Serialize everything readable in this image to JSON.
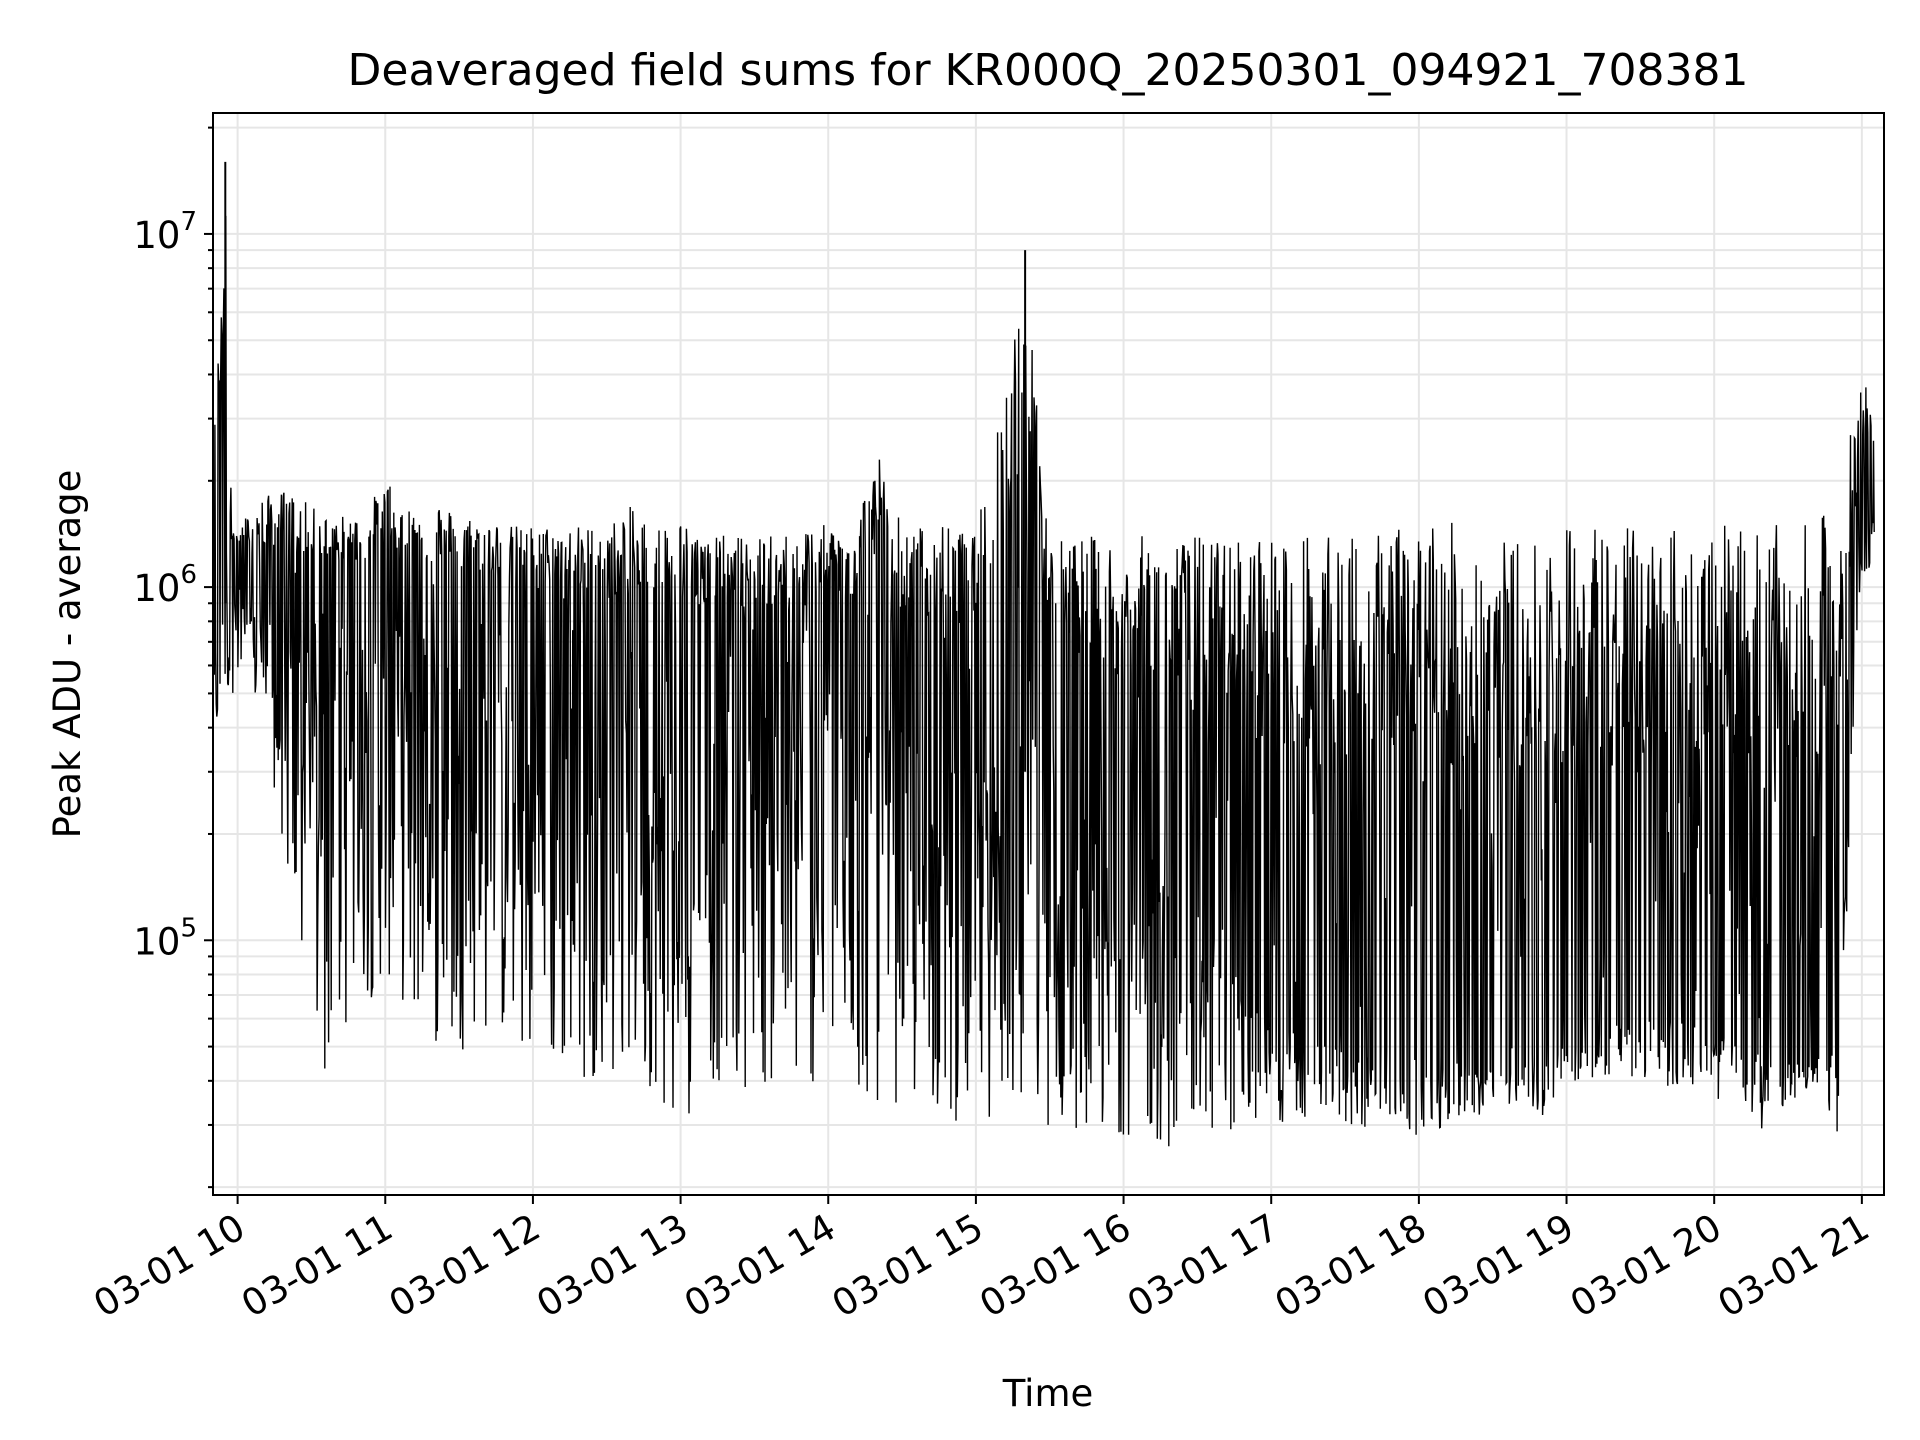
{
  "chart_data": {
    "type": "line",
    "title": "Deaveraged field sums for KR000Q_20250301_094921_708381",
    "xlabel": "Time",
    "ylabel": "Peak ADU - average",
    "y_scale": "log",
    "ylim": [
      19000,
      22000000
    ],
    "xlim": [
      "2025-03-01 09:50",
      "2025-03-01 21:09"
    ],
    "grid": true,
    "line_color": "#000000",
    "x_ticks": [
      {
        "t": "2025-03-01 10:00",
        "label": "03-01 10"
      },
      {
        "t": "2025-03-01 11:00",
        "label": "03-01 11"
      },
      {
        "t": "2025-03-01 12:00",
        "label": "03-01 12"
      },
      {
        "t": "2025-03-01 13:00",
        "label": "03-01 13"
      },
      {
        "t": "2025-03-01 14:00",
        "label": "03-01 14"
      },
      {
        "t": "2025-03-01 15:00",
        "label": "03-01 15"
      },
      {
        "t": "2025-03-01 16:00",
        "label": "03-01 16"
      },
      {
        "t": "2025-03-01 17:00",
        "label": "03-01 17"
      },
      {
        "t": "2025-03-01 18:00",
        "label": "03-01 18"
      },
      {
        "t": "2025-03-01 19:00",
        "label": "03-01 19"
      },
      {
        "t": "2025-03-01 20:00",
        "label": "03-01 20"
      },
      {
        "t": "2025-03-01 21:00",
        "label": "03-01 21"
      }
    ],
    "y_ticks": [
      {
        "value": 100000,
        "base": "10",
        "exp": "5"
      },
      {
        "value": 1000000,
        "base": "10",
        "exp": "6"
      },
      {
        "value": 10000000,
        "base": "10",
        "exp": "7"
      }
    ],
    "series": [
      {
        "x": [
          "2025-03-01 09:50",
          "2025-03-01 09:55",
          "2025-03-01 09:57",
          "2025-03-01 10:00",
          "2025-03-01 10:10",
          "2025-03-01 10:20",
          "2025-03-01 10:30",
          "2025-03-01 10:35",
          "2025-03-01 10:40",
          "2025-03-01 10:50",
          "2025-03-01 11:00",
          "2025-03-01 11:10",
          "2025-03-01 11:20",
          "2025-03-01 11:30",
          "2025-03-01 11:40",
          "2025-03-01 11:50",
          "2025-03-01 12:00",
          "2025-03-01 12:10",
          "2025-03-01 12:20",
          "2025-03-01 12:30",
          "2025-03-01 12:40",
          "2025-03-01 12:50",
          "2025-03-01 12:58",
          "2025-03-01 13:10",
          "2025-03-01 13:20",
          "2025-03-01 13:30",
          "2025-03-01 13:40",
          "2025-03-01 13:50",
          "2025-03-01 14:00",
          "2025-03-01 14:10",
          "2025-03-01 14:20",
          "2025-03-01 14:30",
          "2025-03-01 14:40",
          "2025-03-01 14:50",
          "2025-03-01 15:00",
          "2025-03-01 15:20",
          "2025-03-01 15:30",
          "2025-03-01 15:40",
          "2025-03-01 15:50",
          "2025-03-01 16:00",
          "2025-03-01 16:10",
          "2025-03-01 16:20",
          "2025-03-01 16:30",
          "2025-03-01 16:40",
          "2025-03-01 16:50",
          "2025-03-01 17:00",
          "2025-03-01 17:10",
          "2025-03-01 17:20",
          "2025-03-01 17:30",
          "2025-03-01 17:40",
          "2025-03-01 17:50",
          "2025-03-01 18:00",
          "2025-03-01 18:10",
          "2025-03-01 18:20",
          "2025-03-01 18:30",
          "2025-03-01 18:40",
          "2025-03-01 18:50",
          "2025-03-01 19:00",
          "2025-03-01 19:10",
          "2025-03-01 19:20",
          "2025-03-01 19:30",
          "2025-03-01 19:40",
          "2025-03-01 19:50",
          "2025-03-01 20:00",
          "2025-03-01 20:10",
          "2025-03-01 20:20",
          "2025-03-01 20:30",
          "2025-03-01 20:40",
          "2025-03-01 20:50",
          "2025-03-01 21:00",
          "2025-03-01 21:05"
        ],
        "upper": [
          2300000,
          16000000,
          2000000,
          1500000,
          1800000,
          1900000,
          1700000,
          1600000,
          1600000,
          1600000,
          2000000,
          1700000,
          1800000,
          1600000,
          1600000,
          1500000,
          1500000,
          1500000,
          1500000,
          1500000,
          1700000,
          1500000,
          1600000,
          1400000,
          1400000,
          1400000,
          1400000,
          1500000,
          1500000,
          1500000,
          2500000,
          1500000,
          1500000,
          1500000,
          1400000,
          9000000,
          1400000,
          1400000,
          1400000,
          1400000,
          1400000,
          1400000,
          1400000,
          1400000,
          1400000,
          1500000,
          1400000,
          1400000,
          1400000,
          1400000,
          1500000,
          1600000,
          1600000,
          1400000,
          1400000,
          1400000,
          1400000,
          1500000,
          1600000,
          1500000,
          1500000,
          1500000,
          1500000,
          1500000,
          1500000,
          1500000,
          1500000,
          1500000,
          1800000,
          4000000,
          3300000
        ],
        "base": [
          700000,
          900000,
          900000,
          900000,
          850000,
          700000,
          800000,
          900000,
          800000,
          800000,
          800000,
          700000,
          700000,
          700000,
          700000,
          600000,
          600000,
          600000,
          600000,
          500000,
          500000,
          500000,
          500000,
          500000,
          500000,
          500000,
          500000,
          500000,
          500000,
          500000,
          500000,
          400000,
          400000,
          300000,
          300000,
          300000,
          200000,
          200000,
          200000,
          150000,
          150000,
          150000,
          100000,
          100000,
          70000,
          60000,
          55000,
          50000,
          50000,
          50000,
          50000,
          50000,
          45000,
          45000,
          43000,
          43000,
          45000,
          50000,
          55000,
          60000,
          60000,
          60000,
          60000,
          55000,
          50000,
          45000,
          45000,
          45000,
          50000,
          1500000,
          1600000
        ],
        "lower": [
          330000,
          500000,
          500000,
          500000,
          450000,
          150000,
          50000,
          35000,
          50000,
          60000,
          80000,
          60000,
          50000,
          48000,
          55000,
          50000,
          42000,
          40000,
          40000,
          42000,
          40000,
          38000,
          26000,
          40000,
          38000,
          38000,
          38000,
          36000,
          42000,
          36000,
          34000,
          34000,
          32000,
          30000,
          32000,
          30000,
          29000,
          29000,
          28000,
          28000,
          28000,
          25000,
          27000,
          29000,
          29000,
          30000,
          30000,
          32000,
          30000,
          29000,
          29000,
          28000,
          28000,
          30000,
          33000,
          35000,
          30000,
          40000,
          40000,
          42000,
          40000,
          38000,
          38000,
          35000,
          36000,
          28000,
          35000,
          38000,
          27000,
          1100000,
          1100000
        ]
      }
    ]
  }
}
